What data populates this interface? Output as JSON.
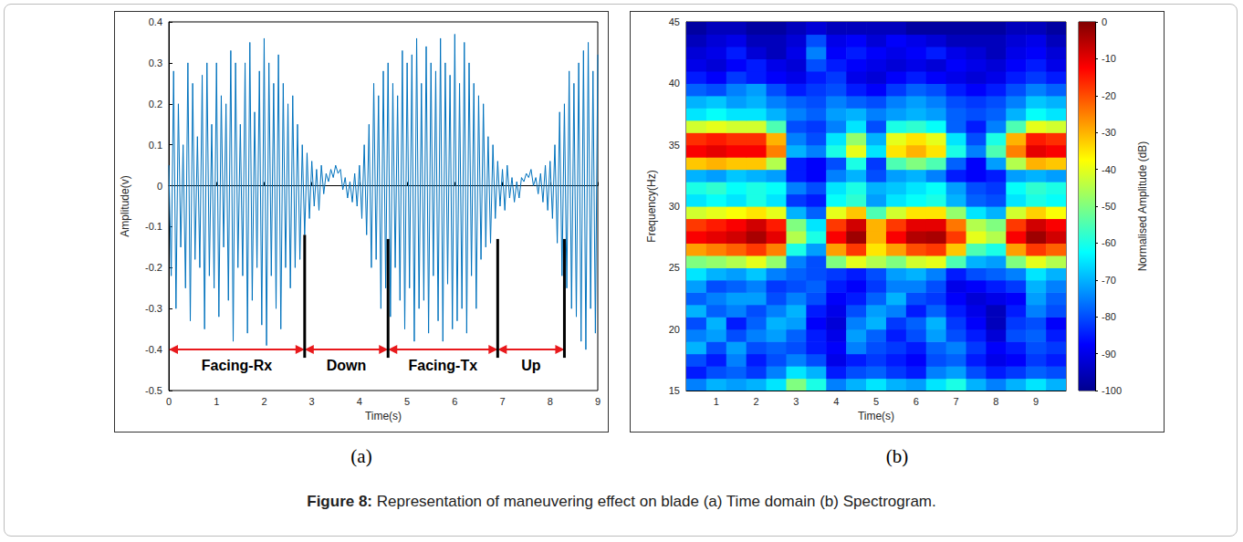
{
  "chart_data": [
    {
      "type": "line",
      "subcaption": "(a)",
      "x_label": "Time(s)",
      "y_label": "Amplitude(v)",
      "xlim": [
        0,
        9
      ],
      "xticks": [
        0,
        1,
        2,
        3,
        4,
        5,
        6,
        7,
        8,
        9
      ],
      "ylim": [
        -0.5,
        0.4
      ],
      "yticks": [
        -0.5,
        -0.4,
        -0.3,
        -0.2,
        -0.1,
        0,
        0.1,
        0.2,
        0.3,
        0.4
      ],
      "grid": false,
      "color": "#0072bd",
      "x": [
        0,
        0.05,
        0.1,
        0.15,
        0.2,
        0.25,
        0.3,
        0.35,
        0.4,
        0.45,
        0.5,
        0.55,
        0.6,
        0.65,
        0.7,
        0.75,
        0.8,
        0.85,
        0.9,
        0.95,
        1,
        1.05,
        1.1,
        1.15,
        1.2,
        1.25,
        1.3,
        1.35,
        1.4,
        1.45,
        1.5,
        1.55,
        1.6,
        1.65,
        1.7,
        1.75,
        1.8,
        1.85,
        1.9,
        1.95,
        2,
        2.05,
        2.1,
        2.15,
        2.2,
        2.25,
        2.3,
        2.35,
        2.4,
        2.45,
        2.5,
        2.55,
        2.6,
        2.65,
        2.7,
        2.75,
        2.8,
        2.85,
        2.9,
        2.95,
        3,
        3.05,
        3.1,
        3.15,
        3.2,
        3.25,
        3.3,
        3.35,
        3.4,
        3.45,
        3.5,
        3.55,
        3.6,
        3.65,
        3.7,
        3.75,
        3.8,
        3.85,
        3.9,
        3.95,
        4,
        4.05,
        4.1,
        4.15,
        4.2,
        4.25,
        4.3,
        4.35,
        4.4,
        4.45,
        4.5,
        4.55,
        4.6,
        4.65,
        4.7,
        4.75,
        4.8,
        4.85,
        4.9,
        4.95,
        5,
        5.05,
        5.1,
        5.15,
        5.2,
        5.25,
        5.3,
        5.35,
        5.4,
        5.45,
        5.5,
        5.55,
        5.6,
        5.65,
        5.7,
        5.75,
        5.8,
        5.85,
        5.9,
        5.95,
        6,
        6.05,
        6.1,
        6.15,
        6.2,
        6.25,
        6.3,
        6.35,
        6.4,
        6.45,
        6.5,
        6.55,
        6.6,
        6.65,
        6.7,
        6.75,
        6.8,
        6.85,
        6.9,
        6.95,
        7,
        7.05,
        7.1,
        7.15,
        7.2,
        7.25,
        7.3,
        7.35,
        7.4,
        7.45,
        7.5,
        7.55,
        7.6,
        7.65,
        7.7,
        7.75,
        7.8,
        7.85,
        7.9,
        7.95,
        8,
        8.05,
        8.1,
        8.15,
        8.2,
        8.25,
        8.3,
        8.35,
        8.4,
        8.45,
        8.5,
        8.55,
        8.6,
        8.65,
        8.7,
        8.75,
        8.8,
        8.85,
        8.9,
        8.95,
        9
      ],
      "values": [
        0.05,
        -0.22,
        0.28,
        -0.3,
        0.2,
        -0.15,
        0.1,
        -0.25,
        0.3,
        -0.33,
        0.25,
        -0.18,
        0.12,
        -0.2,
        0.27,
        -0.35,
        0.3,
        -0.22,
        0.15,
        -0.25,
        0.3,
        -0.32,
        0.22,
        -0.15,
        0.2,
        -0.28,
        0.33,
        -0.38,
        0.3,
        -0.2,
        0.15,
        -0.22,
        0.3,
        -0.36,
        0.35,
        -0.28,
        0.18,
        -0.2,
        0.28,
        -0.34,
        0.36,
        -0.39,
        0.3,
        -0.22,
        0.25,
        -0.3,
        0.32,
        -0.35,
        0.25,
        -0.2,
        0.2,
        -0.25,
        0.22,
        -0.2,
        0.15,
        -0.18,
        0.1,
        -0.12,
        0.08,
        -0.08,
        0.06,
        -0.05,
        0.04,
        -0.06,
        0.05,
        -0.02,
        0.03,
        0.01,
        0.04,
        0.02,
        0.05,
        0.03,
        0.04,
        -0.01,
        0.02,
        -0.03,
        0.01,
        -0.04,
        0.03,
        -0.05,
        0.05,
        -0.08,
        0.1,
        -0.12,
        0.15,
        -0.2,
        0.25,
        -0.18,
        0.22,
        -0.3,
        0.28,
        -0.25,
        0.3,
        -0.32,
        0.25,
        -0.2,
        0.22,
        -0.28,
        0.33,
        -0.35,
        0.3,
        -0.25,
        0.32,
        -0.38,
        0.36,
        -0.3,
        0.25,
        -0.28,
        0.34,
        -0.36,
        0.3,
        -0.22,
        0.28,
        -0.33,
        0.36,
        -0.38,
        0.3,
        -0.24,
        0.27,
        -0.35,
        0.37,
        -0.33,
        0.25,
        -0.3,
        0.35,
        -0.36,
        0.3,
        -0.22,
        0.25,
        -0.3,
        0.22,
        -0.18,
        0.2,
        -0.15,
        0.12,
        -0.14,
        0.1,
        -0.08,
        0.06,
        -0.05,
        0.04,
        -0.06,
        0.05,
        -0.03,
        0.02,
        -0.04,
        0.01,
        -0.03,
        0.02,
        0.01,
        0.03,
        0.02,
        0.04,
        0,
        0.02,
        -0.02,
        0.03,
        -0.04,
        0.05,
        -0.06,
        0.06,
        -0.08,
        0.1,
        -0.14,
        0.18,
        -0.22,
        0.2,
        -0.25,
        0.28,
        -0.3,
        0.25,
        -0.32,
        0.3,
        -0.38,
        0.33,
        -0.4,
        0.35,
        -0.3,
        0.28,
        -0.36,
        0.32
      ],
      "annotations": {
        "segments": [
          {
            "label": "Facing-Rx",
            "start": 0,
            "end": 2.85,
            "y": -0.4
          },
          {
            "label": "Down",
            "start": 2.85,
            "end": 4.6,
            "y": -0.4
          },
          {
            "label": "Facing-Tx",
            "start": 4.6,
            "end": 6.9,
            "y": -0.4
          },
          {
            "label": "Up",
            "start": 6.9,
            "end": 8.3,
            "y": -0.4
          }
        ],
        "markers": [
          {
            "x": 2.85,
            "y0": -0.12,
            "y1": -0.42
          },
          {
            "x": 4.6,
            "y0": -0.13,
            "y1": -0.42
          },
          {
            "x": 6.9,
            "y0": -0.13,
            "y1": -0.42
          },
          {
            "x": 8.3,
            "y0": -0.13,
            "y1": -0.42
          }
        ]
      }
    },
    {
      "type": "heatmap",
      "subcaption": "(b)",
      "x_label": "Time(s)",
      "y_label": "Frequency(Hz)",
      "xlim": [
        0.25,
        9.75
      ],
      "xticks": [
        1,
        2,
        3,
        4,
        5,
        6,
        7,
        8,
        9
      ],
      "ylim": [
        15,
        45
      ],
      "yticks": [
        15,
        20,
        25,
        30,
        35,
        40,
        45
      ],
      "grid": false,
      "x": [
        0.5,
        1,
        1.5,
        2,
        2.5,
        3,
        3.5,
        4,
        4.5,
        5,
        5.5,
        6,
        6.5,
        7,
        7.5,
        8,
        8.5,
        9,
        9.5
      ],
      "y": [
        15.5,
        16.5,
        17.5,
        18.5,
        19.5,
        20.5,
        21.5,
        22.5,
        23.5,
        24.5,
        25.5,
        26.5,
        27.5,
        28.5,
        29.5,
        30.5,
        31.5,
        32.5,
        33.5,
        34.5,
        35.5,
        36.5,
        37.5,
        38.5,
        39.5,
        40.5,
        41.5,
        42.5,
        43.5,
        44.5
      ],
      "values": [
        [
          -75,
          -70,
          -72,
          -70,
          -65,
          -50,
          -60,
          -75,
          -70,
          -65,
          -70,
          -72,
          -65,
          -60,
          -70,
          -75,
          -70,
          -65,
          -70
        ],
        [
          -85,
          -80,
          -78,
          -82,
          -75,
          -65,
          -70,
          -85,
          -80,
          -78,
          -82,
          -85,
          -75,
          -72,
          -80,
          -85,
          -82,
          -78,
          -80
        ],
        [
          -80,
          -85,
          -75,
          -85,
          -80,
          -75,
          -80,
          -90,
          -85,
          -82,
          -85,
          -88,
          -80,
          -78,
          -85,
          -90,
          -88,
          -82,
          -85
        ],
        [
          -70,
          -80,
          -72,
          -80,
          -78,
          -80,
          -85,
          -88,
          -75,
          -80,
          -82,
          -85,
          -78,
          -75,
          -82,
          -88,
          -85,
          -80,
          -82
        ],
        [
          -75,
          -72,
          -80,
          -75,
          -72,
          -78,
          -85,
          -90,
          -72,
          -78,
          -85,
          -80,
          -72,
          -80,
          -85,
          -92,
          -80,
          -78,
          -85
        ],
        [
          -80,
          -70,
          -85,
          -78,
          -70,
          -72,
          -88,
          -92,
          -75,
          -70,
          -82,
          -78,
          -70,
          -82,
          -88,
          -95,
          -82,
          -80,
          -88
        ],
        [
          -70,
          -78,
          -75,
          -80,
          -75,
          -70,
          -85,
          -90,
          -80,
          -72,
          -75,
          -85,
          -78,
          -85,
          -90,
          -95,
          -85,
          -75,
          -80
        ],
        [
          -78,
          -75,
          -72,
          -72,
          -80,
          -75,
          -80,
          -88,
          -85,
          -78,
          -70,
          -80,
          -82,
          -88,
          -92,
          -90,
          -88,
          -72,
          -78
        ],
        [
          -72,
          -80,
          -78,
          -75,
          -82,
          -80,
          -78,
          -85,
          -88,
          -82,
          -75,
          -75,
          -80,
          -90,
          -88,
          -85,
          -82,
          -70,
          -75
        ],
        [
          -65,
          -70,
          -72,
          -68,
          -75,
          -78,
          -80,
          -82,
          -85,
          -80,
          -72,
          -70,
          -75,
          -85,
          -80,
          -78,
          -75,
          -65,
          -70
        ],
        [
          -50,
          -48,
          -45,
          -40,
          -48,
          -75,
          -80,
          -50,
          -40,
          -45,
          -50,
          -42,
          -40,
          -55,
          -70,
          -72,
          -50,
          -40,
          -45
        ],
        [
          -28,
          -25,
          -22,
          -18,
          -25,
          -60,
          -72,
          -28,
          -18,
          -35,
          -28,
          -20,
          -18,
          -32,
          -55,
          -60,
          -28,
          -18,
          -22
        ],
        [
          -12,
          -10,
          -8,
          -4,
          -10,
          -45,
          -60,
          -12,
          -3,
          -30,
          -12,
          -5,
          -4,
          -18,
          -40,
          -45,
          -12,
          -3,
          -8
        ],
        [
          -18,
          -15,
          -12,
          -8,
          -15,
          -50,
          -65,
          -18,
          -8,
          -30,
          -18,
          -10,
          -10,
          -24,
          -45,
          -50,
          -18,
          -8,
          -12
        ],
        [
          -42,
          -40,
          -38,
          -35,
          -40,
          -70,
          -78,
          -40,
          -32,
          -55,
          -42,
          -35,
          -35,
          -48,
          -65,
          -70,
          -42,
          -33,
          -38
        ],
        [
          -65,
          -62,
          -65,
          -60,
          -65,
          -82,
          -85,
          -62,
          -58,
          -72,
          -65,
          -62,
          -60,
          -70,
          -78,
          -80,
          -65,
          -60,
          -62
        ],
        [
          -60,
          -58,
          -62,
          -60,
          -62,
          -75,
          -80,
          -65,
          -60,
          -70,
          -68,
          -65,
          -62,
          -72,
          -80,
          -82,
          -62,
          -58,
          -60
        ],
        [
          -70,
          -72,
          -68,
          -70,
          -72,
          -85,
          -88,
          -75,
          -70,
          -80,
          -72,
          -70,
          -75,
          -85,
          -88,
          -85,
          -72,
          -70,
          -72
        ],
        [
          -32,
          -30,
          -32,
          -32,
          -45,
          -85,
          -88,
          -80,
          -60,
          -82,
          -55,
          -50,
          -55,
          -78,
          -88,
          -72,
          -45,
          -30,
          -32
        ],
        [
          -12,
          -10,
          -12,
          -12,
          -25,
          -70,
          -75,
          -60,
          -40,
          -65,
          -35,
          -30,
          -35,
          -60,
          -75,
          -55,
          -25,
          -10,
          -12
        ],
        [
          -17,
          -15,
          -17,
          -17,
          -30,
          -75,
          -80,
          -65,
          -48,
          -70,
          -40,
          -35,
          -40,
          -65,
          -80,
          -60,
          -30,
          -15,
          -17
        ],
        [
          -42,
          -40,
          -42,
          -42,
          -55,
          -80,
          -82,
          -75,
          -65,
          -80,
          -60,
          -58,
          -62,
          -78,
          -85,
          -75,
          -55,
          -40,
          -42
        ],
        [
          -65,
          -62,
          -65,
          -65,
          -70,
          -75,
          -78,
          -72,
          -70,
          -75,
          -72,
          -70,
          -72,
          -78,
          -80,
          -78,
          -70,
          -62,
          -65
        ],
        [
          -70,
          -68,
          -72,
          -70,
          -75,
          -78,
          -80,
          -75,
          -78,
          -80,
          -75,
          -72,
          -75,
          -80,
          -82,
          -80,
          -75,
          -68,
          -70
        ],
        [
          -78,
          -80,
          -75,
          -72,
          -80,
          -85,
          -82,
          -80,
          -85,
          -88,
          -82,
          -78,
          -80,
          -85,
          -88,
          -85,
          -80,
          -75,
          -78
        ],
        [
          -85,
          -88,
          -82,
          -85,
          -88,
          -90,
          -85,
          -82,
          -90,
          -92,
          -88,
          -85,
          -88,
          -90,
          -92,
          -90,
          -85,
          -82,
          -85
        ],
        [
          -90,
          -92,
          -88,
          -85,
          -90,
          -92,
          -80,
          -85,
          -88,
          -90,
          -92,
          -90,
          -92,
          -88,
          -90,
          -92,
          -88,
          -85,
          -90
        ],
        [
          -92,
          -90,
          -85,
          -92,
          -95,
          -90,
          -75,
          -88,
          -85,
          -88,
          -90,
          -88,
          -85,
          -90,
          -92,
          -95,
          -90,
          -88,
          -92
        ],
        [
          -95,
          -92,
          -90,
          -95,
          -95,
          -92,
          -80,
          -90,
          -88,
          -92,
          -88,
          -90,
          -92,
          -95,
          -95,
          -95,
          -92,
          -90,
          -95
        ],
        [
          -98,
          -95,
          -95,
          -98,
          -98,
          -95,
          -92,
          -95,
          -95,
          -95,
          -95,
          -98,
          -98,
          -98,
          -98,
          -98,
          -95,
          -95,
          -98
        ]
      ],
      "colorbar": {
        "label": "Normalised Amplitude (dB)",
        "range": [
          -100,
          0
        ],
        "ticks": [
          -100,
          -90,
          -80,
          -70,
          -60,
          -50,
          -40,
          -30,
          -20,
          -10,
          0
        ]
      }
    }
  ],
  "caption": {
    "label": "Figure 8:",
    "text": "Representation of maneuvering effect on blade (a) Time domain (b) Spectrogram."
  }
}
